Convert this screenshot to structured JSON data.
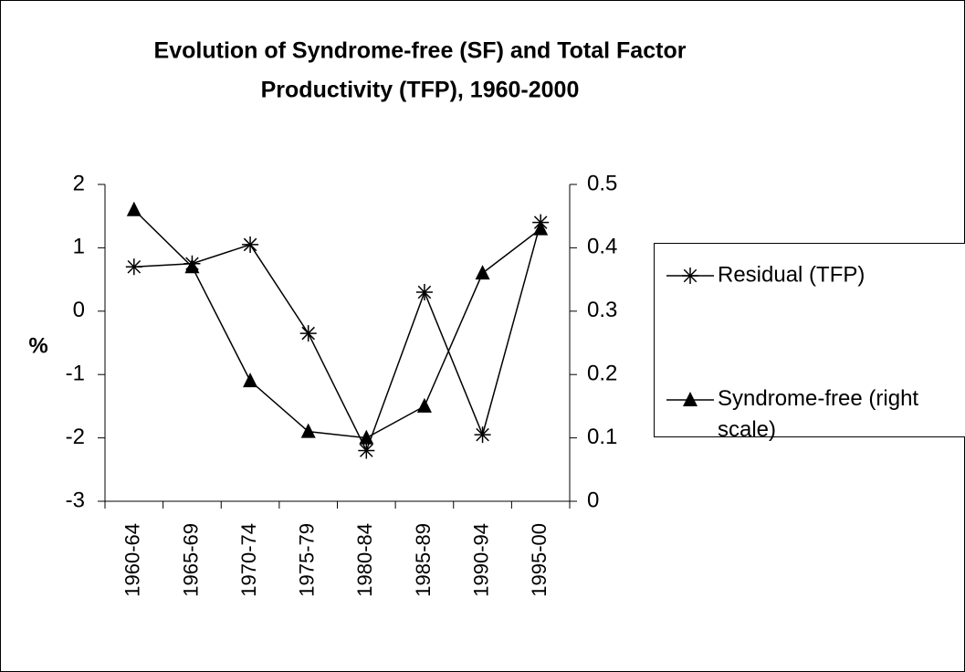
{
  "chart_data": {
    "type": "line",
    "title": [
      "Evolution of Syndrome-free (SF) and Total Factor",
      "Productivity (TFP), 1960-2000"
    ],
    "ylabel": "%",
    "categories": [
      "1960-64",
      "1965-69",
      "1970-74",
      "1975-79",
      "1980-84",
      "1985-89",
      "1990-94",
      "1995-00"
    ],
    "series": [
      {
        "name": "Residual (TFP)",
        "color": "#000000",
        "marker": "star",
        "values": [
          0.7,
          0.75,
          1.05,
          -0.35,
          -2.2,
          0.3,
          -1.95,
          1.4
        ]
      },
      {
        "name": "Syndrome-free (right scale)",
        "color": "#000000",
        "marker": "triangle",
        "axis": "y2",
        "values": [
          0.46,
          0.37,
          0.19,
          0.11,
          0.1,
          0.15,
          0.36,
          0.43
        ]
      }
    ],
    "ylim": [
      -3,
      2
    ],
    "yticks": [
      2,
      1,
      0,
      -1,
      -2,
      -3
    ],
    "y2lim": [
      0,
      0.5
    ],
    "y2ticks": [
      0.5,
      0.4,
      0.3,
      0.2,
      0.1,
      0
    ],
    "grid": false,
    "legend": "right"
  }
}
